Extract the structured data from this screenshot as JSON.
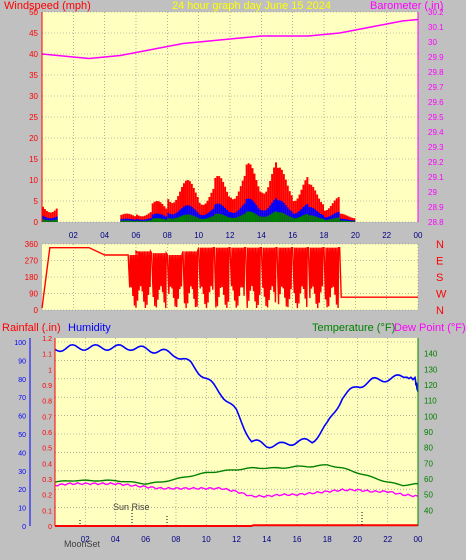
{
  "colors": {
    "background": "#c0c0c0",
    "plot_bg": "#ffffc0",
    "grid": "#808080",
    "windspeed": "#ff0000",
    "wind_mid": "#0000ff",
    "wind_low": "#008000",
    "barometer": "#ff00ff",
    "rainfall": "#ff0000",
    "humidity": "#0000ff",
    "temperature": "#008000",
    "dewpoint": "#ff00ff",
    "title": "#ffff00"
  },
  "chart_data": [
    {
      "type": "line",
      "title": "24 hour graph day   June 15 2024",
      "left_label": "Windspeed (mph)",
      "right_label": "Barometer (.in)",
      "x_ticks": [
        "02",
        "04",
        "06",
        "08",
        "10",
        "12",
        "14",
        "16",
        "18",
        "20",
        "22",
        "00"
      ],
      "x_range_hours": [
        0,
        24
      ],
      "y_left_ticks": [
        "0",
        "5",
        "10",
        "15",
        "20",
        "25",
        "30",
        "35",
        "40",
        "45",
        "50"
      ],
      "y_left_range": [
        0,
        50
      ],
      "y_right_ticks": [
        "28.8",
        "28.9",
        "29",
        "29.1",
        "29.2",
        "29.3",
        "29.4",
        "29.5",
        "29.6",
        "29.7",
        "29.8",
        "29.9",
        "30",
        "30.1",
        "30.2"
      ],
      "y_right_range": [
        28.8,
        30.2
      ],
      "grid": true,
      "series": [
        {
          "name": "Windspeed",
          "style": "bars",
          "x": [
            0.0,
            1.0,
            2.0,
            3.0,
            4.0,
            5.0,
            6.0,
            7.0,
            8.0,
            9.0,
            10.0,
            11.0,
            12.0,
            13.0,
            14.0,
            15.0,
            16.0,
            17.0,
            18.0,
            19.0,
            20.0,
            21.0,
            22.0,
            23.0
          ],
          "y": [
            5,
            0,
            0,
            0,
            0,
            2,
            3,
            5,
            10,
            10,
            9,
            11,
            12,
            14,
            15,
            13,
            11,
            9,
            6,
            2,
            0,
            0,
            0,
            0
          ]
        },
        {
          "name": "Barometer",
          "style": "line",
          "x": [
            0,
            1,
            2,
            3,
            4,
            5,
            6,
            7,
            8,
            9,
            10,
            11,
            12,
            13,
            14,
            15,
            16,
            17,
            18,
            19,
            20,
            21,
            22,
            23,
            24
          ],
          "y": [
            29.92,
            29.91,
            29.9,
            29.89,
            29.9,
            29.91,
            29.93,
            29.95,
            29.97,
            29.99,
            30.0,
            30.01,
            30.02,
            30.03,
            30.04,
            30.04,
            30.04,
            30.04,
            30.05,
            30.06,
            30.08,
            30.1,
            30.12,
            30.14,
            30.15
          ]
        }
      ]
    },
    {
      "type": "line",
      "title": "Wind direction",
      "x_range_hours": [
        0,
        24
      ],
      "y_left_ticks": [
        "0",
        "90",
        "180",
        "270",
        "360"
      ],
      "y_left_range": [
        0,
        360
      ],
      "compass": [
        "N",
        "W",
        "S",
        "E",
        "N"
      ],
      "grid": true,
      "series": [
        {
          "name": "Wind direction",
          "x": [
            0.0,
            0.5,
            1.0,
            3.0,
            4.0,
            5.5,
            6.0,
            7.0,
            8.0,
            9.0,
            10.0,
            11.0,
            12.0,
            13.0,
            14.0,
            15.0,
            16.0,
            17.0,
            18.0,
            19.0,
            19.1,
            24.0
          ],
          "y": [
            10,
            340,
            340,
            340,
            300,
            300,
            320,
            310,
            300,
            320,
            340,
            340,
            340,
            340,
            340,
            340,
            340,
            340,
            340,
            340,
            70,
            70
          ]
        }
      ]
    },
    {
      "type": "line",
      "left_label": "Rainfall (.in)",
      "left_label2": "Humidity",
      "right_label": "Temperature (°F)",
      "right_label2": "Dew Point (°F)",
      "x_ticks": [
        "02",
        "04",
        "06",
        "08",
        "10",
        "12",
        "14",
        "16",
        "18",
        "20",
        "22",
        "00"
      ],
      "x_range_hours": [
        0,
        24
      ],
      "y_rain_ticks": [
        "0",
        "0.1",
        "0.2",
        "0.3",
        "0.4",
        "0.5",
        "0.6",
        "0.7",
        "0.8",
        "0.9",
        "1",
        "1.1",
        "1.2"
      ],
      "y_rain_range": [
        0,
        1.2
      ],
      "y_humidity_ticks": [
        "0",
        "10",
        "20",
        "30",
        "40",
        "50",
        "60",
        "70",
        "80",
        "90",
        "100"
      ],
      "y_humidity_range": [
        0,
        100
      ],
      "y_right_ticks": [
        "40",
        "50",
        "60",
        "70",
        "80",
        "90",
        "100",
        "110",
        "120",
        "130",
        "140"
      ],
      "y_right_range": [
        30,
        150
      ],
      "annotations": [
        "Sun Rise",
        "MoonSet"
      ],
      "grid": true,
      "series": [
        {
          "name": "Humidity",
          "x": [
            0,
            1,
            2,
            3,
            4,
            5,
            6,
            7,
            8,
            9,
            10,
            11,
            12,
            13,
            14,
            15,
            16,
            17,
            18,
            19,
            20,
            21,
            22,
            23,
            23.8,
            24
          ],
          "y": [
            96,
            97,
            97,
            97,
            97,
            97,
            96,
            95,
            93,
            88,
            80,
            72,
            62,
            46,
            44,
            44,
            46,
            46,
            55,
            70,
            76,
            79,
            80,
            81,
            80,
            73
          ]
        },
        {
          "name": "Temperature",
          "x": [
            0,
            1,
            2,
            3,
            4,
            5,
            6,
            7,
            8,
            9,
            10,
            11,
            12,
            13,
            14,
            15,
            16,
            17,
            18,
            19,
            20,
            21,
            22,
            23,
            24
          ],
          "y": [
            58,
            59,
            59,
            59,
            59,
            58,
            57,
            58,
            60,
            62,
            64,
            65,
            66,
            67,
            67,
            67,
            68,
            68,
            69,
            67,
            64,
            61,
            58,
            56,
            57
          ]
        },
        {
          "name": "Dew Point",
          "x": [
            0,
            1,
            2,
            3,
            4,
            5,
            6,
            7,
            8,
            9,
            10,
            11,
            12,
            13,
            14,
            15,
            16,
            17,
            18,
            19,
            20,
            21,
            22,
            23,
            24
          ],
          "y": [
            56,
            57,
            57,
            57,
            57,
            56,
            55,
            54,
            54,
            54,
            54,
            54,
            52,
            49,
            49,
            50,
            50,
            51,
            52,
            53,
            53,
            52,
            52,
            50,
            49
          ]
        },
        {
          "name": "Rainfall",
          "x": [
            0,
            13,
            13.1,
            24
          ],
          "y": [
            0,
            0,
            0.005,
            0.005
          ]
        }
      ]
    }
  ]
}
